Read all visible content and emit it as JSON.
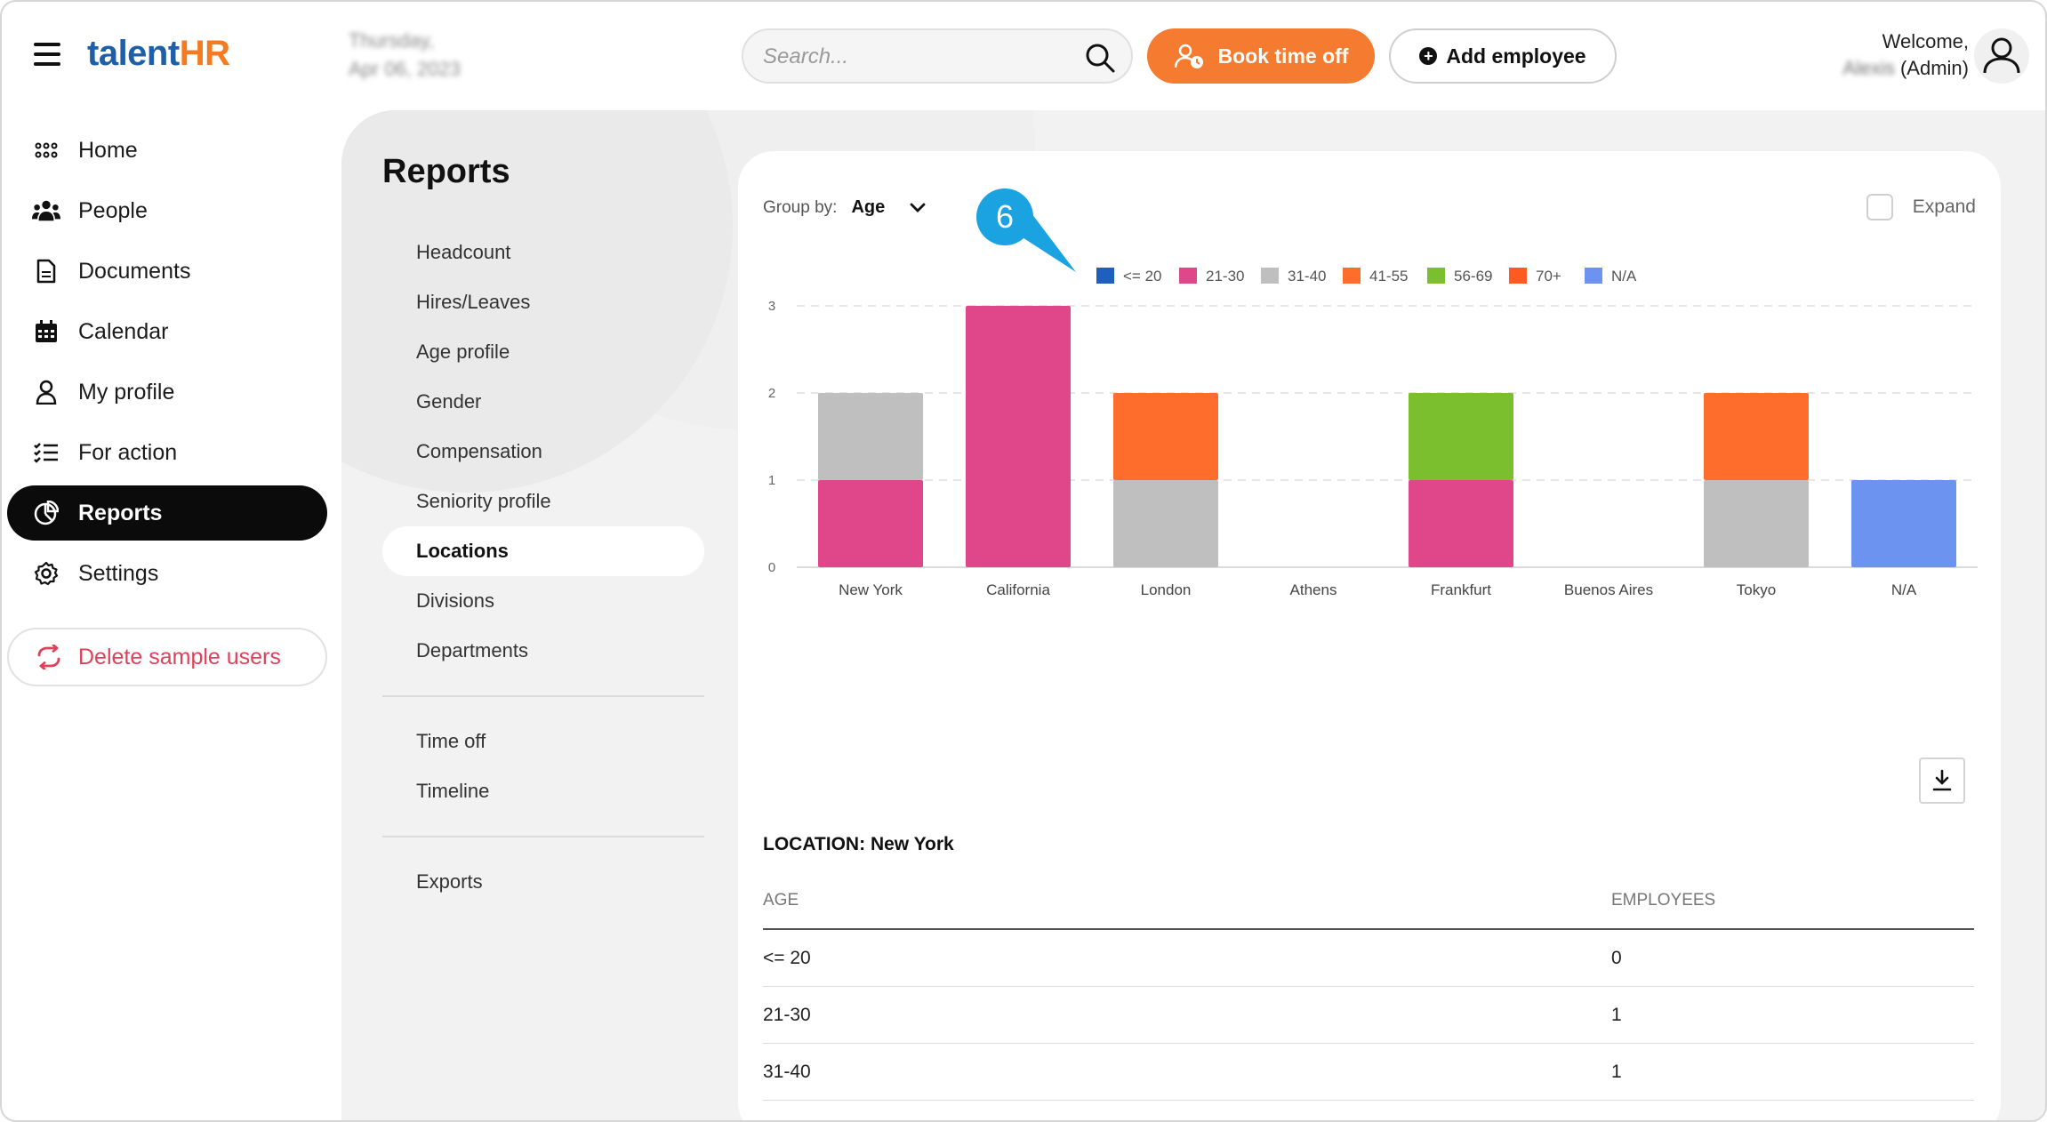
{
  "brand": {
    "part1": "talent",
    "part2": "HR"
  },
  "header": {
    "date_line1": "Thursday,",
    "date_line2": "Apr 06, 2023",
    "search_placeholder": "Search...",
    "book_label": "Book time off",
    "add_label": "Add employee",
    "welcome": "Welcome,",
    "user_blurred": "Alexis",
    "role": "(Admin)"
  },
  "nav": {
    "items": [
      {
        "label": "Home",
        "icon": "grid-dots-icon"
      },
      {
        "label": "People",
        "icon": "people-icon"
      },
      {
        "label": "Documents",
        "icon": "document-icon"
      },
      {
        "label": "Calendar",
        "icon": "calendar-icon"
      },
      {
        "label": "My profile",
        "icon": "user-icon"
      },
      {
        "label": "For action",
        "icon": "checklist-icon"
      },
      {
        "label": "Reports",
        "icon": "pie-chart-icon",
        "active": true
      },
      {
        "label": "Settings",
        "icon": "gear-icon"
      }
    ],
    "delete_label": "Delete sample users"
  },
  "reports": {
    "title": "Reports",
    "group1": [
      "Headcount",
      "Hires/Leaves",
      "Age profile",
      "Gender",
      "Compensation",
      "Seniority profile",
      "Locations",
      "Divisions",
      "Departments"
    ],
    "active": "Locations",
    "group2": [
      "Time off",
      "Timeline"
    ],
    "group3": [
      "Exports"
    ]
  },
  "controls": {
    "group_by_label": "Group by:",
    "group_by_value": "Age",
    "expand_label": "Expand",
    "callout_number": "6"
  },
  "colors": {
    "accent_orange": "#f47b30",
    "active_nav": "#0b0b0b",
    "delete_red": "#e0415a",
    "callout_blue": "#1aa3e0"
  },
  "chart_data": {
    "type": "bar",
    "stacked": true,
    "categories": [
      "New York",
      "California",
      "London",
      "Athens",
      "Frankfurt",
      "Buenos Aires",
      "Tokyo",
      "N/A"
    ],
    "ylim": [
      0,
      3
    ],
    "yticks": [
      0,
      1,
      2,
      3
    ],
    "grid": true,
    "legend_position": "top",
    "series": [
      {
        "name": "<= 20",
        "color": "#1f5fbf",
        "values": [
          0,
          0,
          0,
          0,
          0,
          0,
          0,
          0
        ]
      },
      {
        "name": "21-30",
        "color": "#e0468a",
        "values": [
          1,
          3,
          0,
          0,
          1,
          0,
          0,
          0
        ]
      },
      {
        "name": "31-40",
        "color": "#bfbfbf",
        "values": [
          1,
          0,
          1,
          0,
          0,
          0,
          1,
          0
        ]
      },
      {
        "name": "41-55",
        "color": "#ff6d2d",
        "values": [
          0,
          0,
          1,
          0,
          0,
          0,
          1,
          0
        ]
      },
      {
        "name": "56-69",
        "color": "#7cbf2e",
        "values": [
          0,
          0,
          0,
          0,
          1,
          0,
          0,
          0
        ]
      },
      {
        "name": "70+",
        "color": "#ff5a1f",
        "values": [
          0,
          0,
          0,
          0,
          0,
          0,
          0,
          0
        ]
      },
      {
        "name": "N/A",
        "color": "#6b93ef",
        "values": [
          0,
          0,
          0,
          0,
          0,
          0,
          0,
          1
        ]
      }
    ]
  },
  "table": {
    "location_label": "LOCATION:",
    "location_value": "New York",
    "col1": "AGE",
    "col2": "EMPLOYEES",
    "rows": [
      {
        "age": "<= 20",
        "employees": "0"
      },
      {
        "age": "21-30",
        "employees": "1"
      },
      {
        "age": "31-40",
        "employees": "1"
      }
    ]
  }
}
